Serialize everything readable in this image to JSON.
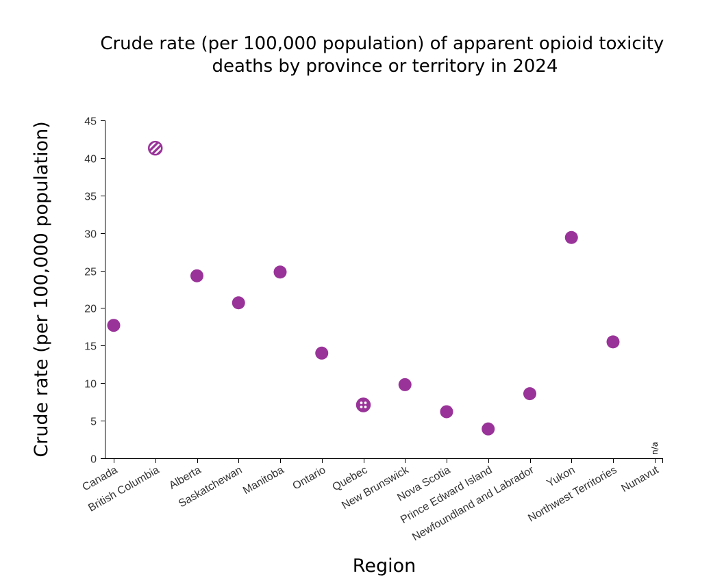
{
  "chart_data": {
    "type": "scatter",
    "title": [
      "Crude rate (per 100,000 population) of apparent opioid toxicity",
      "deaths by province or territory in 2024"
    ],
    "xlabel": "Region",
    "ylabel": "Crude rate (per 100,000 population)",
    "ylim": [
      0,
      45
    ],
    "yticks": [
      0,
      5,
      10,
      15,
      20,
      25,
      30,
      35,
      40,
      45
    ],
    "grid": false,
    "marker_color": "#993399",
    "categories": [
      "Canada",
      "British Columbia",
      "Alberta",
      "Saskatchewan",
      "Manitoba",
      "Ontario",
      "Quebec",
      "New Brunswick",
      "Nova Scotia",
      "Prince Edward Island",
      "Newfoundland and Labrador",
      "Yukon",
      "Northwest Territories",
      "Nunavut"
    ],
    "values": [
      17.7,
      41.3,
      24.3,
      20.7,
      24.8,
      14.0,
      7.1,
      9.8,
      6.2,
      3.9,
      8.6,
      29.4,
      15.5,
      null
    ],
    "patterns": [
      "solid",
      "diagonal-stripes",
      "solid",
      "solid",
      "solid",
      "solid",
      "dots",
      "solid",
      "solid",
      "solid",
      "solid",
      "solid",
      "solid",
      "none"
    ],
    "missing_label": "n/a"
  }
}
